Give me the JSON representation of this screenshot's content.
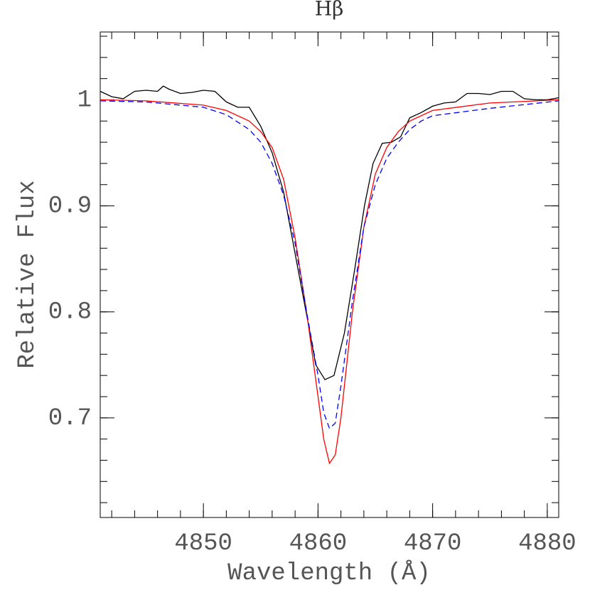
{
  "chart_data": {
    "type": "line",
    "title": "Hβ",
    "xlabel": "Wavelength (Å)",
    "ylabel": "Relative Flux",
    "xlim": [
      4841,
      4881
    ],
    "ylim": [
      0.606,
      1.064
    ],
    "xticks": [
      4850,
      4860,
      4870,
      4880
    ],
    "yticks": [
      0.7,
      0.8,
      0.9,
      1
    ],
    "series": [
      {
        "color": "#000000",
        "dash": "solid",
        "x": [
          4841,
          4842,
          4843,
          4844,
          4845,
          4846,
          4846.5,
          4847,
          4848,
          4849,
          4850,
          4851,
          4852,
          4853,
          4854,
          4855,
          4856,
          4857,
          4858.26,
          4859.2,
          4859.8,
          4860.6,
          4861.4,
          4862.3,
          4863.2,
          4864.05,
          4864.8,
          4865.6,
          4866.4,
          4867.2,
          4868,
          4869,
          4870,
          4871,
          4872,
          4873,
          4874,
          4875,
          4876,
          4877,
          4878,
          4879,
          4880,
          4881
        ],
        "values": [
          1.008,
          1.003,
          1.001,
          1.008,
          1.009,
          1.008,
          1.013,
          1.01,
          1.006,
          1.007,
          1.009,
          1.008,
          0.998,
          0.993,
          0.993,
          0.975,
          0.95,
          0.913,
          0.84,
          0.786,
          0.75,
          0.736,
          0.74,
          0.78,
          0.84,
          0.9,
          0.94,
          0.959,
          0.96,
          0.965,
          0.983,
          0.988,
          0.994,
          0.997,
          0.998,
          1.006,
          1.006,
          1.005,
          1.008,
          1.008,
          1.001,
          1.0,
          1.0,
          1.002
        ]
      },
      {
        "color": "#ff0000",
        "dash": "solid",
        "x": [
          4841,
          4845,
          4850,
          4852,
          4854,
          4855,
          4856,
          4857,
          4858,
          4859,
          4860,
          4860.5,
          4861,
          4861.5,
          4862,
          4863,
          4864,
          4865,
          4866,
          4867,
          4868,
          4870,
          4875,
          4881
        ],
        "values": [
          1.0,
          0.999,
          0.995,
          0.99,
          0.98,
          0.97,
          0.955,
          0.925,
          0.87,
          0.8,
          0.72,
          0.68,
          0.657,
          0.665,
          0.7,
          0.8,
          0.88,
          0.93,
          0.955,
          0.97,
          0.98,
          0.99,
          0.997,
          1.0
        ]
      },
      {
        "color": "#0000ff",
        "dash": "dashed",
        "x": [
          4841,
          4845,
          4850,
          4852,
          4854,
          4855,
          4856,
          4857,
          4858,
          4859,
          4860,
          4860.5,
          4861,
          4861.5,
          4862,
          4863,
          4864,
          4865,
          4866,
          4867,
          4868,
          4869,
          4870,
          4875,
          4881
        ],
        "values": [
          0.999,
          0.998,
          0.993,
          0.986,
          0.972,
          0.96,
          0.94,
          0.91,
          0.865,
          0.8,
          0.74,
          0.705,
          0.69,
          0.695,
          0.73,
          0.81,
          0.88,
          0.92,
          0.945,
          0.96,
          0.972,
          0.98,
          0.985,
          0.992,
          0.999
        ]
      }
    ]
  }
}
